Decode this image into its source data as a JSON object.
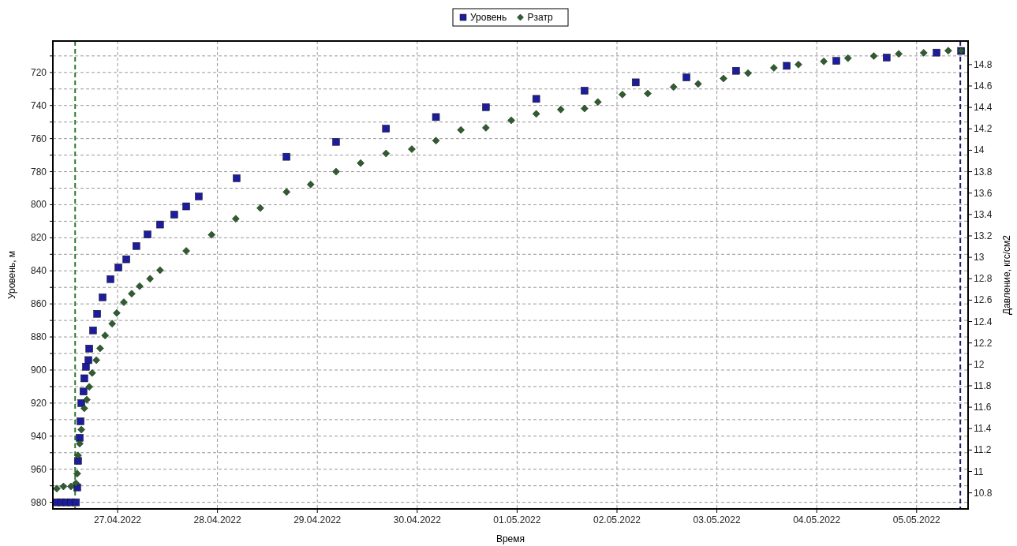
{
  "chart_data": {
    "type": "scatter",
    "xlabel": "Время",
    "ylabel": "Уровень, м",
    "y2label": "Давление, кгс/см2",
    "xlim": [
      "2022-04-26T08:27",
      "2022-05-05T12:22"
    ],
    "xticks": [
      {
        "value": "2022-04-27",
        "label": "27.04.2022"
      },
      {
        "value": "2022-04-28",
        "label": "28.04.2022"
      },
      {
        "value": "2022-04-29",
        "label": "29.04.2022"
      },
      {
        "value": "2022-04-30",
        "label": "30.04.2022"
      },
      {
        "value": "2022-05-01",
        "label": "01.05.2022"
      },
      {
        "value": "2022-05-02",
        "label": "02.05.2022"
      },
      {
        "value": "2022-05-03",
        "label": "03.05.2022"
      },
      {
        "value": "2022-05-04",
        "label": "04.05.2022"
      },
      {
        "value": "2022-05-05",
        "label": "05.05.2022"
      }
    ],
    "ylim": [
      984,
      701
    ],
    "yticks": [
      {
        "value": 710,
        "label": null
      },
      720,
      {
        "value": 730,
        "label": null
      },
      740,
      {
        "value": 750,
        "label": null
      },
      760,
      {
        "value": 770,
        "label": null
      },
      780,
      {
        "value": 790,
        "label": null
      },
      800,
      {
        "value": 810,
        "label": null
      },
      820,
      {
        "value": 830,
        "label": null
      },
      840,
      {
        "value": 850,
        "label": null
      },
      860,
      {
        "value": 870,
        "label": null
      },
      880,
      {
        "value": 890,
        "label": null
      },
      900,
      {
        "value": 910,
        "label": null
      },
      920,
      {
        "value": 930,
        "label": null
      },
      940,
      {
        "value": 950,
        "label": null
      },
      960,
      {
        "value": 970,
        "label": null
      },
      980
    ],
    "y2lim": [
      10.65,
      15.02
    ],
    "y2ticks": [
      10.8,
      11,
      11.2,
      11.4,
      11.6,
      11.8,
      12,
      12.2,
      12.4,
      12.6,
      12.8,
      13,
      13.2,
      13.4,
      13.6,
      13.8,
      14,
      14.2,
      14.4,
      14.6,
      14.8
    ],
    "grid": true,
    "legend": "top",
    "ref_lines": [
      {
        "axis": "x",
        "value": "2022-04-26T13:48",
        "color": "#2e7d2e",
        "line_style": "dashed"
      },
      {
        "axis": "x",
        "value": "2022-05-05T10:30",
        "color": "#1c1c6e",
        "line_style": "dashed"
      }
    ],
    "series": [
      {
        "name": "Уровень",
        "color": "#1c1c9c",
        "marker": "square",
        "x": [
          "2022-04-26T09:24",
          "2022-04-26T10:30",
          "2022-04-26T11:42",
          "2022-04-26T12:48",
          "2022-04-26T14:00",
          "2022-04-26T14:18",
          "2022-04-26T14:30",
          "2022-04-26T14:54",
          "2022-04-26T15:06",
          "2022-04-26T15:18",
          "2022-04-26T15:48",
          "2022-04-26T16:00",
          "2022-04-26T16:24",
          "2022-04-26T17:00",
          "2022-04-26T17:12",
          "2022-04-26T18:06",
          "2022-04-26T19:06",
          "2022-04-26T20:24",
          "2022-04-26T22:18",
          "2022-04-27T00:12",
          "2022-04-27T02:06",
          "2022-04-27T04:30",
          "2022-04-27T07:12",
          "2022-04-27T10:12",
          "2022-04-27T13:36",
          "2022-04-27T16:30",
          "2022-04-27T19:30",
          "2022-04-28T04:36",
          "2022-04-28T16:36",
          "2022-04-29T04:30",
          "2022-04-29T16:30",
          "2022-04-30T04:30",
          "2022-04-30T16:30",
          "2022-05-01T04:36",
          "2022-05-01T16:12",
          "2022-05-02T04:30",
          "2022-05-02T16:42",
          "2022-05-03T04:36",
          "2022-05-03T16:48",
          "2022-05-04T04:42",
          "2022-05-04T16:48",
          "2022-05-05T04:48",
          "2022-05-05T10:42"
        ],
        "values": [
          980,
          980,
          980,
          980,
          980,
          971,
          955,
          941,
          931,
          920,
          913,
          905,
          898,
          894,
          887,
          876,
          866,
          856,
          845,
          838,
          833,
          825,
          818,
          812,
          806,
          801,
          795,
          784,
          771,
          762,
          754,
          747,
          741,
          736,
          731,
          726,
          723,
          719,
          716,
          713,
          711,
          708,
          707
        ]
      },
      {
        "name": "Рзатр",
        "color": "#2e5e2e",
        "marker": "diamond",
        "axis": "y2",
        "x": [
          "2022-04-26T09:24",
          "2022-04-26T11:00",
          "2022-04-26T12:48",
          "2022-04-26T14:00",
          "2022-04-26T14:18",
          "2022-04-26T14:30",
          "2022-04-26T14:54",
          "2022-04-26T15:18",
          "2022-04-26T16:00",
          "2022-04-26T16:36",
          "2022-04-26T17:12",
          "2022-04-26T17:54",
          "2022-04-26T18:54",
          "2022-04-26T19:48",
          "2022-04-26T21:00",
          "2022-04-26T22:42",
          "2022-04-26T23:48",
          "2022-04-27T01:30",
          "2022-04-27T03:24",
          "2022-04-27T05:18",
          "2022-04-27T07:48",
          "2022-04-27T10:12",
          "2022-04-27T16:30",
          "2022-04-27T22:36",
          "2022-04-28T04:24",
          "2022-04-28T10:18",
          "2022-04-28T16:36",
          "2022-04-28T22:24",
          "2022-04-29T04:30",
          "2022-04-29T10:24",
          "2022-04-29T16:30",
          "2022-04-29T22:42",
          "2022-04-30T04:30",
          "2022-04-30T10:30",
          "2022-04-30T16:30",
          "2022-04-30T22:36",
          "2022-05-01T04:36",
          "2022-05-01T10:30",
          "2022-05-01T16:12",
          "2022-05-01T19:24",
          "2022-05-02T01:18",
          "2022-05-02T07:24",
          "2022-05-02T13:36",
          "2022-05-02T19:30",
          "2022-05-03T01:36",
          "2022-05-03T07:30",
          "2022-05-03T13:42",
          "2022-05-03T19:36",
          "2022-05-04T01:42",
          "2022-05-04T07:30",
          "2022-05-04T13:42",
          "2022-05-04T19:42",
          "2022-05-05T01:42",
          "2022-05-05T07:36",
          "2022-05-05T10:42"
        ],
        "values": [
          10.84,
          10.86,
          10.86,
          10.89,
          10.98,
          11.15,
          11.26,
          11.39,
          11.59,
          11.67,
          11.79,
          11.92,
          12.04,
          12.15,
          12.27,
          12.38,
          12.48,
          12.58,
          12.66,
          12.73,
          12.8,
          12.88,
          13.06,
          13.21,
          13.36,
          13.46,
          13.61,
          13.68,
          13.8,
          13.88,
          13.97,
          14.01,
          14.09,
          14.19,
          14.21,
          14.28,
          14.34,
          14.38,
          14.39,
          14.45,
          14.52,
          14.53,
          14.59,
          14.62,
          14.67,
          14.72,
          14.77,
          14.8,
          14.83,
          14.86,
          14.88,
          14.9,
          14.91,
          14.93,
          14.93
        ]
      }
    ]
  }
}
